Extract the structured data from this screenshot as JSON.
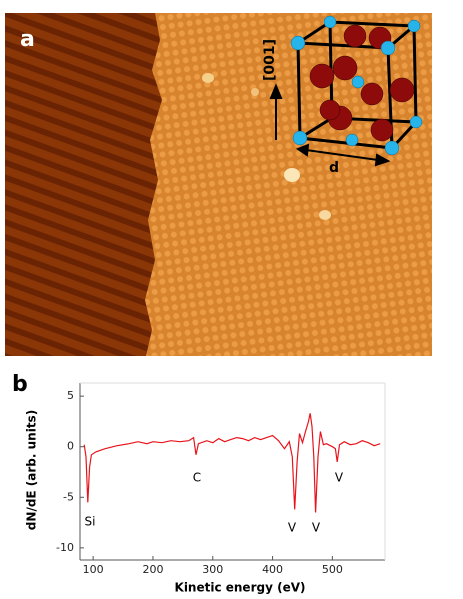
{
  "panel_a": {
    "label": "a",
    "direction_label": "[001]",
    "lattice_label": "d"
  },
  "chart_data": {
    "type": "line",
    "panel_label": "b",
    "x_label": "Kinetic energy (eV)",
    "y_label": "dN/dE (arb. units)",
    "color": "#e8141c",
    "x": [
      85,
      88,
      91,
      94,
      97,
      105,
      120,
      140,
      160,
      175,
      190,
      200,
      215,
      230,
      245,
      260,
      268,
      272,
      276,
      290,
      300,
      310,
      320,
      330,
      340,
      350,
      360,
      370,
      380,
      390,
      400,
      410,
      420,
      428,
      433,
      437,
      441,
      445,
      450,
      455,
      460,
      463,
      466,
      469,
      472,
      476,
      480,
      485,
      490,
      500,
      505,
      508,
      512,
      520,
      530,
      540,
      550,
      560,
      570,
      580
    ],
    "values": [
      0.2,
      -1,
      -5.5,
      -2,
      -0.8,
      -0.5,
      -0.2,
      0.1,
      0.3,
      0.5,
      0.3,
      0.5,
      0.4,
      0.6,
      0.5,
      0.6,
      0.9,
      -0.8,
      0.3,
      0.6,
      0.4,
      0.8,
      0.5,
      0.7,
      0.9,
      0.8,
      0.6,
      0.9,
      0.7,
      0.9,
      1.1,
      0.6,
      -0.2,
      0.5,
      -1,
      -6.2,
      -1.5,
      1.3,
      0.4,
      1.5,
      2.5,
      3.3,
      2,
      -1,
      -6.5,
      -1,
      1.5,
      0.2,
      0.3,
      0,
      -0.2,
      -1.5,
      0.2,
      0.5,
      0.2,
      0.3,
      0.6,
      0.4,
      0.1,
      0.3
    ],
    "annotations": [
      "Si",
      "C",
      "V",
      "V",
      "V"
    ],
    "xlim": [
      78,
      588
    ],
    "ylim": [
      -11.2,
      6.3
    ],
    "xticks": [
      100,
      200,
      300,
      400,
      500
    ],
    "yticks": [
      -10,
      -5,
      0,
      5
    ]
  }
}
